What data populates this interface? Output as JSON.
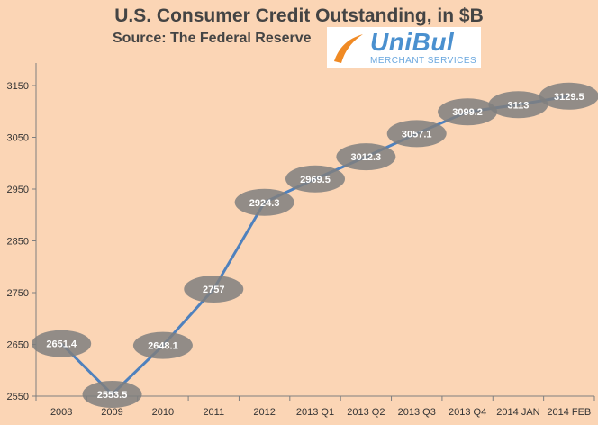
{
  "title": "U.S. Consumer Credit Outstanding, in $B",
  "subtitle": "Source: The Federal Reserve",
  "logo": {
    "name": "UniBul",
    "tagline": "MERCHANT SERVICES",
    "icon": "swoosh-icon"
  },
  "colors": {
    "background": "#fbd5b5",
    "line": "#4f81bd",
    "marker": "#7f7f7f",
    "label": "#ffffff",
    "axis_text": "#333333"
  },
  "chart_data": {
    "type": "line",
    "categories": [
      "2008",
      "2009",
      "2010",
      "2011",
      "2012",
      "2013 Q1",
      "2013 Q2",
      "2013 Q3",
      "2013 Q4",
      "2014 JAN",
      "2014 FEB"
    ],
    "values": [
      2651.4,
      2553.5,
      2648.1,
      2757,
      2924.3,
      2969.5,
      3012.3,
      3057.1,
      3099.2,
      3113,
      3129.5
    ],
    "value_labels": [
      "2651.4",
      "2553.5",
      "2648.1",
      "2757",
      "2924.3",
      "2969.5",
      "3012.3",
      "3057.1",
      "3099.2",
      "3113",
      "3129.5"
    ],
    "yticks": [
      "2550",
      "2650",
      "2750",
      "2850",
      "2950",
      "3050",
      "3150"
    ],
    "ylim": [
      2550,
      3200
    ],
    "grid": false,
    "legend": "none"
  }
}
